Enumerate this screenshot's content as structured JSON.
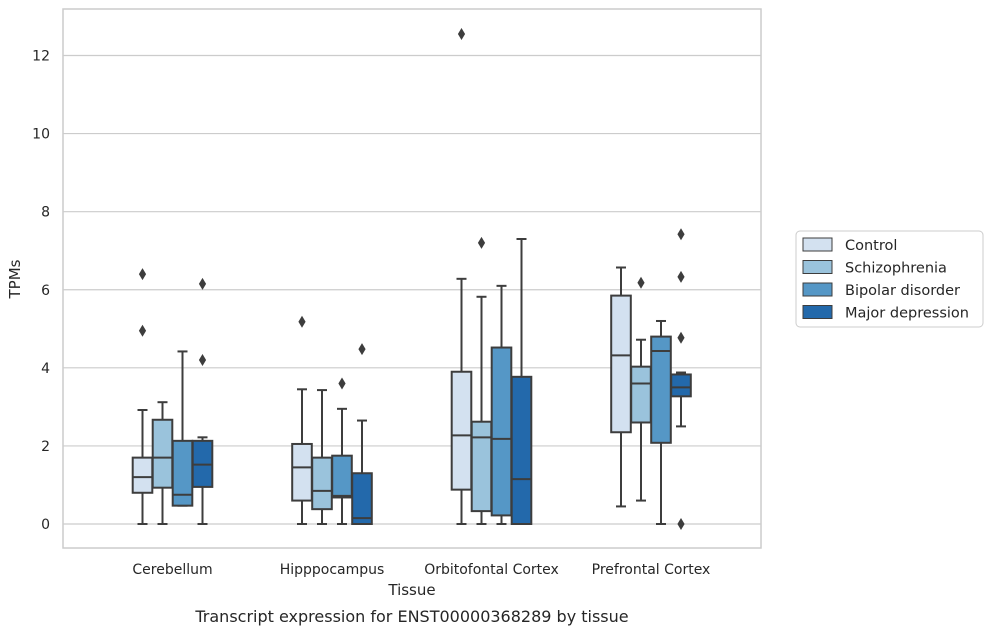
{
  "chart_data": {
    "type": "box",
    "title": "Transcript expression for ENST00000368289 by tissue",
    "xlabel": "Tissue",
    "ylabel": "TPMs",
    "ylim": [
      -0.6,
      13.2
    ],
    "yticks": [
      0,
      2,
      4,
      6,
      8,
      10,
      12
    ],
    "grid": "horizontal",
    "legend_position": "right",
    "categories": [
      "Cerebellum",
      "Hipppocampus",
      "Orbitofontal Cortex",
      "Prefrontal Cortex"
    ],
    "series": [
      {
        "name": "Control",
        "color": "#d3e1f0",
        "boxes": [
          {
            "whisker_low": 0.0,
            "q1": 0.8,
            "median": 1.2,
            "q3": 1.7,
            "whisker_high": 2.92,
            "outliers": [
              4.95,
              6.4
            ]
          },
          {
            "whisker_low": 0.0,
            "q1": 0.6,
            "median": 1.45,
            "q3": 2.05,
            "whisker_high": 3.45,
            "outliers": [
              5.18
            ]
          },
          {
            "whisker_low": 0.0,
            "q1": 0.88,
            "median": 2.27,
            "q3": 3.9,
            "whisker_high": 6.28,
            "outliers": [
              12.55
            ]
          },
          {
            "whisker_low": 0.45,
            "q1": 2.35,
            "median": 4.32,
            "q3": 5.85,
            "whisker_high": 6.57,
            "outliers": []
          }
        ]
      },
      {
        "name": "Schizophrenia",
        "color": "#9ac3dc",
        "boxes": [
          {
            "whisker_low": 0.0,
            "q1": 0.93,
            "median": 1.7,
            "q3": 2.67,
            "whisker_high": 3.12,
            "outliers": []
          },
          {
            "whisker_low": 0.0,
            "q1": 0.38,
            "median": 0.85,
            "q3": 1.7,
            "whisker_high": 3.43,
            "outliers": []
          },
          {
            "whisker_low": 0.0,
            "q1": 0.33,
            "median": 2.22,
            "q3": 2.62,
            "whisker_high": 5.82,
            "outliers": [
              7.2
            ]
          },
          {
            "whisker_low": 0.6,
            "q1": 2.6,
            "median": 3.6,
            "q3": 4.03,
            "whisker_high": 4.72,
            "outliers": [
              6.18
            ]
          }
        ]
      },
      {
        "name": "Bipolar disorder",
        "color": "#5597c6",
        "boxes": [
          {
            "whisker_low": 0.47,
            "q1": 0.47,
            "median": 0.75,
            "q3": 2.13,
            "whisker_high": 4.42,
            "outliers": []
          },
          {
            "whisker_low": 0.0,
            "q1": 0.68,
            "median": 0.72,
            "q3": 1.75,
            "whisker_high": 2.95,
            "outliers": [
              3.6
            ]
          },
          {
            "whisker_low": 0.0,
            "q1": 0.22,
            "median": 2.18,
            "q3": 4.52,
            "whisker_high": 6.1,
            "outliers": []
          },
          {
            "whisker_low": 0.0,
            "q1": 2.08,
            "median": 4.43,
            "q3": 4.8,
            "whisker_high": 5.2,
            "outliers": []
          }
        ]
      },
      {
        "name": "Major depression",
        "color": "#2369ab",
        "boxes": [
          {
            "whisker_low": 0.0,
            "q1": 0.95,
            "median": 1.52,
            "q3": 2.13,
            "whisker_high": 2.22,
            "outliers": [
              4.2,
              6.15
            ]
          },
          {
            "whisker_low": 0.0,
            "q1": 0.0,
            "median": 0.15,
            "q3": 1.3,
            "whisker_high": 2.65,
            "outliers": [
              4.48
            ]
          },
          {
            "whisker_low": 0.0,
            "q1": 0.0,
            "median": 1.15,
            "q3": 3.77,
            "whisker_high": 7.3,
            "outliers": []
          },
          {
            "whisker_low": 2.5,
            "q1": 3.27,
            "median": 3.5,
            "q3": 3.83,
            "whisker_high": 3.88,
            "outliers": [
              0.0,
              4.77,
              6.33,
              7.42
            ]
          }
        ]
      }
    ]
  }
}
